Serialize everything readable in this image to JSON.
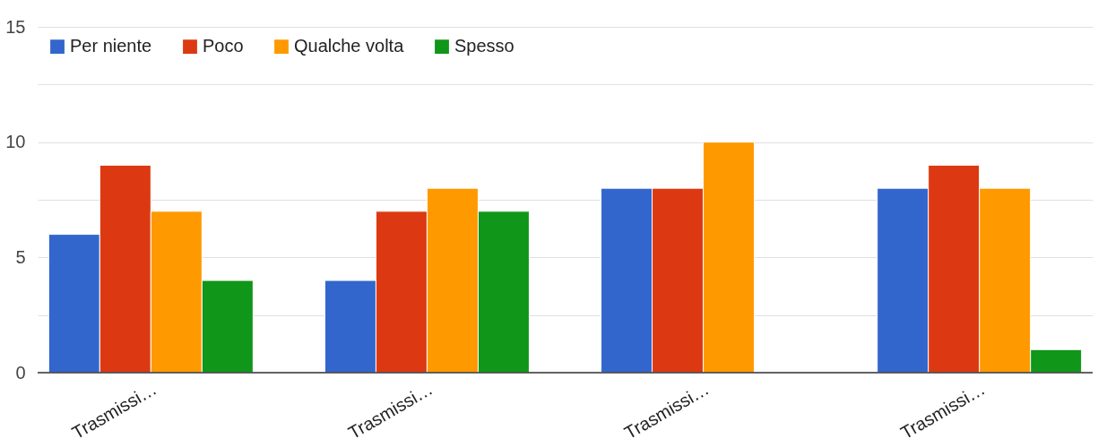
{
  "chart_data": {
    "type": "bar",
    "categories": [
      "Trasmissi…",
      "Trasmissi…",
      "Trasmissi…",
      "Trasmissi…"
    ],
    "series": [
      {
        "name": "Per niente",
        "color": "#3366cc",
        "values": [
          6,
          4,
          8,
          8
        ]
      },
      {
        "name": "Poco",
        "color": "#dc3912",
        "values": [
          9,
          7,
          8,
          9
        ]
      },
      {
        "name": "Qualche volta",
        "color": "#ff9900",
        "values": [
          7,
          8,
          10,
          8
        ]
      },
      {
        "name": "Spesso",
        "color": "#109618",
        "values": [
          4,
          7,
          null,
          1
        ]
      }
    ],
    "ylim": [
      0,
      15
    ],
    "yticks": [
      0,
      {
        "value": 2.5,
        "label": null
      },
      5,
      {
        "value": 7.5,
        "label": null
      },
      10,
      {
        "value": 12.5,
        "label": null
      },
      15
    ],
    "grid": "y",
    "legend": "top left"
  }
}
